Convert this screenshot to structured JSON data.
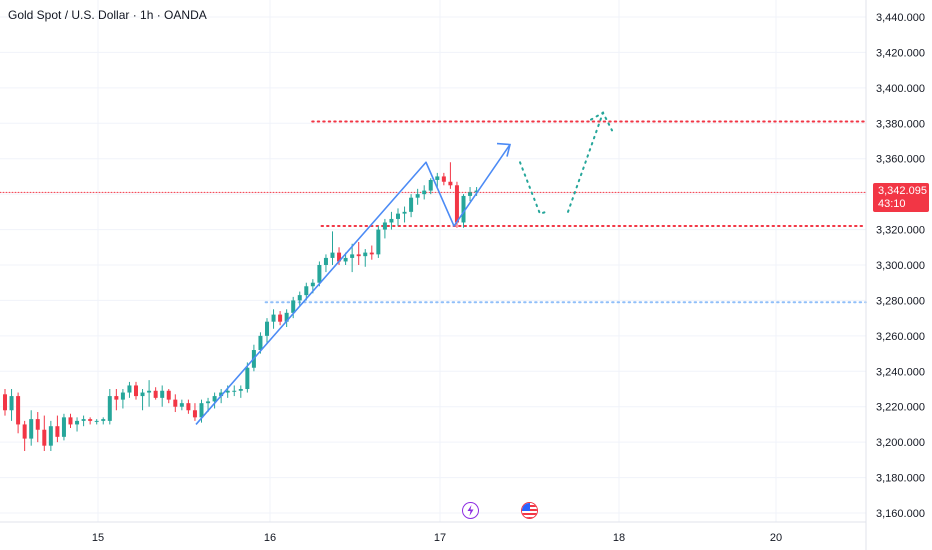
{
  "title": "Gold Spot / U.S. Dollar · 1h · OANDA",
  "current_price": "3,342.095",
  "countdown": "43:10",
  "colors": {
    "up": "#26a69a",
    "down": "#f23645",
    "arrow": "#4c8bf5",
    "projection": "#26a69a",
    "support": "#90bff9"
  },
  "icons": {
    "event_1": "lightning-icon",
    "event_2": "us-flag-icon"
  },
  "chart_data": {
    "type": "candlestick",
    "title": "Gold Spot / U.S. Dollar · 1h · OANDA",
    "xlabel": "",
    "ylabel": "",
    "ylim": [
      3156,
      3446
    ],
    "x_ticks": [
      "15",
      "16",
      "17",
      "18",
      "20"
    ],
    "y_ticks": [
      "3,160.000",
      "3,180.000",
      "3,200.000",
      "3,220.000",
      "3,240.000",
      "3,260.000",
      "3,280.000",
      "3,300.000",
      "3,320.000",
      "3,340.000",
      "3,360.000",
      "3,380.000",
      "3,400.000",
      "3,420.000",
      "3,440.000"
    ],
    "candles": [
      {
        "o": 3227,
        "h": 3230,
        "l": 3215,
        "c": 3218
      },
      {
        "o": 3218,
        "h": 3230,
        "l": 3212,
        "c": 3226
      },
      {
        "o": 3226,
        "h": 3228,
        "l": 3205,
        "c": 3210
      },
      {
        "o": 3210,
        "h": 3212,
        "l": 3195,
        "c": 3202
      },
      {
        "o": 3202,
        "h": 3218,
        "l": 3198,
        "c": 3213
      },
      {
        "o": 3213,
        "h": 3217,
        "l": 3200,
        "c": 3207
      },
      {
        "o": 3207,
        "h": 3215,
        "l": 3195,
        "c": 3198
      },
      {
        "o": 3198,
        "h": 3212,
        "l": 3195,
        "c": 3209
      },
      {
        "o": 3209,
        "h": 3215,
        "l": 3200,
        "c": 3203
      },
      {
        "o": 3203,
        "h": 3216,
        "l": 3201,
        "c": 3214
      },
      {
        "o": 3214,
        "h": 3216,
        "l": 3208,
        "c": 3210
      },
      {
        "o": 3210,
        "h": 3214,
        "l": 3206,
        "c": 3212
      },
      {
        "o": 3212,
        "h": 3215,
        "l": 3209,
        "c": 3213
      },
      {
        "o": 3213,
        "h": 3214,
        "l": 3210,
        "c": 3212
      },
      {
        "o": 3212,
        "h": 3213,
        "l": 3210,
        "c": 3212
      },
      {
        "o": 3212,
        "h": 3214,
        "l": 3210,
        "c": 3213
      },
      {
        "o": 3212,
        "h": 3230,
        "l": 3210,
        "c": 3226
      },
      {
        "o": 3226,
        "h": 3230,
        "l": 3218,
        "c": 3224
      },
      {
        "o": 3224,
        "h": 3230,
        "l": 3219,
        "c": 3228
      },
      {
        "o": 3228,
        "h": 3234,
        "l": 3225,
        "c": 3232
      },
      {
        "o": 3232,
        "h": 3234,
        "l": 3224,
        "c": 3226
      },
      {
        "o": 3226,
        "h": 3230,
        "l": 3218,
        "c": 3228
      },
      {
        "o": 3228,
        "h": 3235,
        "l": 3220,
        "c": 3229
      },
      {
        "o": 3229,
        "h": 3231,
        "l": 3224,
        "c": 3225
      },
      {
        "o": 3225,
        "h": 3232,
        "l": 3220,
        "c": 3229
      },
      {
        "o": 3229,
        "h": 3230,
        "l": 3222,
        "c": 3224
      },
      {
        "o": 3224,
        "h": 3227,
        "l": 3217,
        "c": 3220
      },
      {
        "o": 3220,
        "h": 3224,
        "l": 3218,
        "c": 3222
      },
      {
        "o": 3222,
        "h": 3224,
        "l": 3216,
        "c": 3218
      },
      {
        "o": 3218,
        "h": 3222,
        "l": 3212,
        "c": 3214
      },
      {
        "o": 3214,
        "h": 3224,
        "l": 3211,
        "c": 3222
      },
      {
        "o": 3222,
        "h": 3225,
        "l": 3217,
        "c": 3223
      },
      {
        "o": 3223,
        "h": 3228,
        "l": 3219,
        "c": 3226
      },
      {
        "o": 3226,
        "h": 3230,
        "l": 3222,
        "c": 3228
      },
      {
        "o": 3228,
        "h": 3232,
        "l": 3225,
        "c": 3229
      },
      {
        "o": 3229,
        "h": 3232,
        "l": 3226,
        "c": 3229
      },
      {
        "o": 3229,
        "h": 3232,
        "l": 3225,
        "c": 3230
      },
      {
        "o": 3230,
        "h": 3245,
        "l": 3228,
        "c": 3242
      },
      {
        "o": 3242,
        "h": 3255,
        "l": 3240,
        "c": 3252
      },
      {
        "o": 3252,
        "h": 3262,
        "l": 3250,
        "c": 3260
      },
      {
        "o": 3260,
        "h": 3270,
        "l": 3256,
        "c": 3268
      },
      {
        "o": 3268,
        "h": 3275,
        "l": 3264,
        "c": 3272
      },
      {
        "o": 3272,
        "h": 3274,
        "l": 3266,
        "c": 3268
      },
      {
        "o": 3268,
        "h": 3275,
        "l": 3265,
        "c": 3273
      },
      {
        "o": 3273,
        "h": 3282,
        "l": 3270,
        "c": 3280
      },
      {
        "o": 3280,
        "h": 3285,
        "l": 3277,
        "c": 3283
      },
      {
        "o": 3283,
        "h": 3290,
        "l": 3280,
        "c": 3288
      },
      {
        "o": 3288,
        "h": 3292,
        "l": 3284,
        "c": 3290
      },
      {
        "o": 3290,
        "h": 3302,
        "l": 3288,
        "c": 3300
      },
      {
        "o": 3300,
        "h": 3306,
        "l": 3296,
        "c": 3304
      },
      {
        "o": 3304,
        "h": 3319,
        "l": 3300,
        "c": 3307
      },
      {
        "o": 3307,
        "h": 3310,
        "l": 3300,
        "c": 3302
      },
      {
        "o": 3302,
        "h": 3307,
        "l": 3300,
        "c": 3304
      },
      {
        "o": 3304,
        "h": 3312,
        "l": 3296,
        "c": 3306
      },
      {
        "o": 3306,
        "h": 3313,
        "l": 3300,
        "c": 3305
      },
      {
        "o": 3305,
        "h": 3309,
        "l": 3299,
        "c": 3307
      },
      {
        "o": 3307,
        "h": 3311,
        "l": 3303,
        "c": 3306
      },
      {
        "o": 3306,
        "h": 3322,
        "l": 3304,
        "c": 3320
      },
      {
        "o": 3320,
        "h": 3326,
        "l": 3315,
        "c": 3324
      },
      {
        "o": 3324,
        "h": 3330,
        "l": 3320,
        "c": 3326
      },
      {
        "o": 3326,
        "h": 3332,
        "l": 3322,
        "c": 3329
      },
      {
        "o": 3329,
        "h": 3333,
        "l": 3324,
        "c": 3330
      },
      {
        "o": 3330,
        "h": 3340,
        "l": 3327,
        "c": 3338
      },
      {
        "o": 3338,
        "h": 3343,
        "l": 3334,
        "c": 3340
      },
      {
        "o": 3340,
        "h": 3345,
        "l": 3337,
        "c": 3342
      },
      {
        "o": 3342,
        "h": 3349,
        "l": 3340,
        "c": 3348
      },
      {
        "o": 3348,
        "h": 3352,
        "l": 3344,
        "c": 3350
      },
      {
        "o": 3350,
        "h": 3352,
        "l": 3345,
        "c": 3347
      },
      {
        "o": 3347,
        "h": 3358,
        "l": 3343,
        "c": 3345
      },
      {
        "o": 3345,
        "h": 3347,
        "l": 3321,
        "c": 3324
      },
      {
        "o": 3324,
        "h": 3340,
        "l": 3321,
        "c": 3339
      },
      {
        "o": 3339,
        "h": 3344,
        "l": 3336,
        "c": 3341
      },
      {
        "o": 3341,
        "h": 3344,
        "l": 3339,
        "c": 3342
      }
    ],
    "levels": [
      {
        "price": 3381,
        "color": "#f23645",
        "from": 0.335
      },
      {
        "price": 3322,
        "color": "#f23645",
        "from": 0.345
      },
      {
        "price": 3279,
        "color": "#90bff9",
        "from": 0.285
      },
      {
        "price": 3341,
        "color": "#f23645",
        "from": 0.0
      }
    ],
    "annotations": {
      "impulse_arrow": [
        [
          3210,
          0
        ],
        [
          3358,
          0
        ],
        [
          3322,
          0
        ],
        [
          3368,
          0
        ]
      ],
      "projection": [
        [
          3358
        ],
        [
          3330
        ],
        [
          3330
        ],
        [
          3386
        ],
        [
          3376
        ]
      ]
    }
  }
}
